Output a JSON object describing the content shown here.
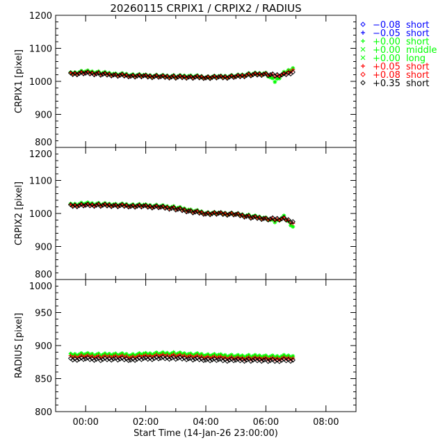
{
  "chart_data": {
    "type": "scatter",
    "title": "20260115 CRPIX1 / CRPIX2 / RADIUS",
    "xlabel": "Start Time (14-Jan-26 23:00:00)",
    "x_units": "hours after 00:00",
    "xlim": [
      -1,
      9
    ],
    "x_ticks": [
      {
        "v": 0,
        "label": "00:00"
      },
      {
        "v": 2,
        "label": "02:00"
      },
      {
        "v": 4,
        "label": "04:00"
      },
      {
        "v": 6,
        "label": "06:00"
      },
      {
        "v": 8,
        "label": "08:00"
      }
    ],
    "legend_placement": "right-top",
    "legend": [
      {
        "marker": "diamond",
        "value": "−0.08",
        "label": "short",
        "color": "#0000ff"
      },
      {
        "marker": "plus",
        "value": "−0.05",
        "label": "short",
        "color": "#0000ff"
      },
      {
        "marker": "plus",
        "value": "+0.00",
        "label": "short",
        "color": "#00ff00"
      },
      {
        "marker": "cross",
        "value": "+0.00",
        "label": "middle",
        "color": "#00ff00"
      },
      {
        "marker": "cross",
        "value": "+0.00",
        "label": "long",
        "color": "#00ff00"
      },
      {
        "marker": "plus",
        "value": "+0.05",
        "label": "short",
        "color": "#ff0000"
      },
      {
        "marker": "diamond",
        "value": "+0.08",
        "label": "short",
        "color": "#ff0000"
      },
      {
        "marker": "diamond",
        "value": "+0.35",
        "label": "short",
        "color": "#000000"
      }
    ],
    "panels": [
      {
        "ylabel": "CRPIX1 [pixel]",
        "ylim": [
          800,
          1200
        ],
        "y_ticks": [
          "800",
          "900",
          "1000",
          "1100",
          "1200"
        ],
        "x": [
          -0.5,
          0,
          0.5,
          1,
          1.5,
          2,
          2.5,
          3,
          3.5,
          4,
          4.5,
          5,
          5.5,
          6,
          6.3,
          6.6,
          6.9
        ],
        "series": [
          {
            "name": "+0.00 short",
            "color": "#00ff00",
            "marker": "asterisk",
            "values": [
              1024,
              1030,
              1026,
              1022,
              1020,
              1017,
              1016,
              1015,
              1016,
              1013,
              1014,
              1016,
              1022,
              1024,
              1000,
              1025,
              1040
            ]
          },
          {
            "name": "+0.05 short",
            "color": "#ff0000",
            "marker": "plus",
            "values": [
              1023,
              1027,
              1024,
              1020,
              1018,
              1016,
              1015,
              1014,
              1014,
              1013,
              1013,
              1015,
              1021,
              1023,
              1015,
              1022,
              1035
            ]
          },
          {
            "name": "+0.35 short",
            "color": "#000000",
            "marker": "diamond",
            "values": [
              1022,
              1025,
              1022,
              1019,
              1017,
              1015,
              1014,
              1013,
              1013,
              1012,
              1012,
              1014,
              1020,
              1022,
              1018,
              1020,
              1028
            ]
          }
        ]
      },
      {
        "ylabel": "CRPIX2 [pixel]",
        "ylim": [
          800,
          1200
        ],
        "y_ticks": [
          "800",
          "900",
          "1000",
          "1100",
          "1200"
        ],
        "x": [
          -0.5,
          0,
          0.5,
          1,
          1.5,
          2,
          2.5,
          3,
          3.5,
          4,
          4.5,
          5,
          5.5,
          6,
          6.3,
          6.6,
          6.9
        ],
        "series": [
          {
            "name": "+0.00 short",
            "color": "#00ff00",
            "marker": "asterisk",
            "values": [
              1026,
              1030,
              1028,
              1027,
              1026,
              1024,
              1022,
              1018,
              1010,
              1002,
              1000,
              998,
              992,
              986,
              975,
              990,
              960
            ]
          },
          {
            "name": "+0.05 short",
            "color": "#ff0000",
            "marker": "plus",
            "values": [
              1024,
              1026,
              1026,
              1025,
              1024,
              1022,
              1020,
              1016,
              1008,
              1001,
              1000,
              998,
              990,
              985,
              980,
              985,
              970
            ]
          },
          {
            "name": "+0.35 short",
            "color": "#000000",
            "marker": "diamond",
            "values": [
              1023,
              1025,
              1025,
              1024,
              1023,
              1021,
              1019,
              1014,
              1006,
              1000,
              999,
              997,
              989,
              984,
              983,
              984,
              975
            ]
          }
        ]
      },
      {
        "ylabel": "RADIUS [pixel]",
        "ylim": [
          800,
          1000
        ],
        "y_ticks": [
          "800",
          "850",
          "900",
          "950",
          "1000"
        ],
        "x": [
          -0.5,
          0,
          0.5,
          1,
          1.5,
          2,
          2.5,
          3,
          3.5,
          4,
          4.5,
          5,
          5.5,
          6,
          6.3,
          6.6,
          6.9
        ],
        "series": [
          {
            "name": "+0.00 short",
            "color": "#00ff00",
            "marker": "asterisk",
            "values": [
              886,
              887,
              886,
              887,
              886,
              887,
              888,
              888,
              887,
              886,
              885,
              884,
              884,
              884,
              883,
              884,
              884
            ]
          },
          {
            "name": "+0.05 short",
            "color": "#ff0000",
            "marker": "plus",
            "values": [
              883,
              884,
              883,
              884,
              883,
              884,
              885,
              885,
              884,
              883,
              882,
              881,
              881,
              881,
              880,
              881,
              881
            ]
          },
          {
            "name": "+0.35 short",
            "color": "#000000",
            "marker": "diamond",
            "values": [
              879,
              880,
              879,
              880,
              879,
              880,
              881,
              881,
              880,
              879,
              878,
              878,
              878,
              878,
              877,
              878,
              878
            ]
          }
        ]
      }
    ]
  }
}
